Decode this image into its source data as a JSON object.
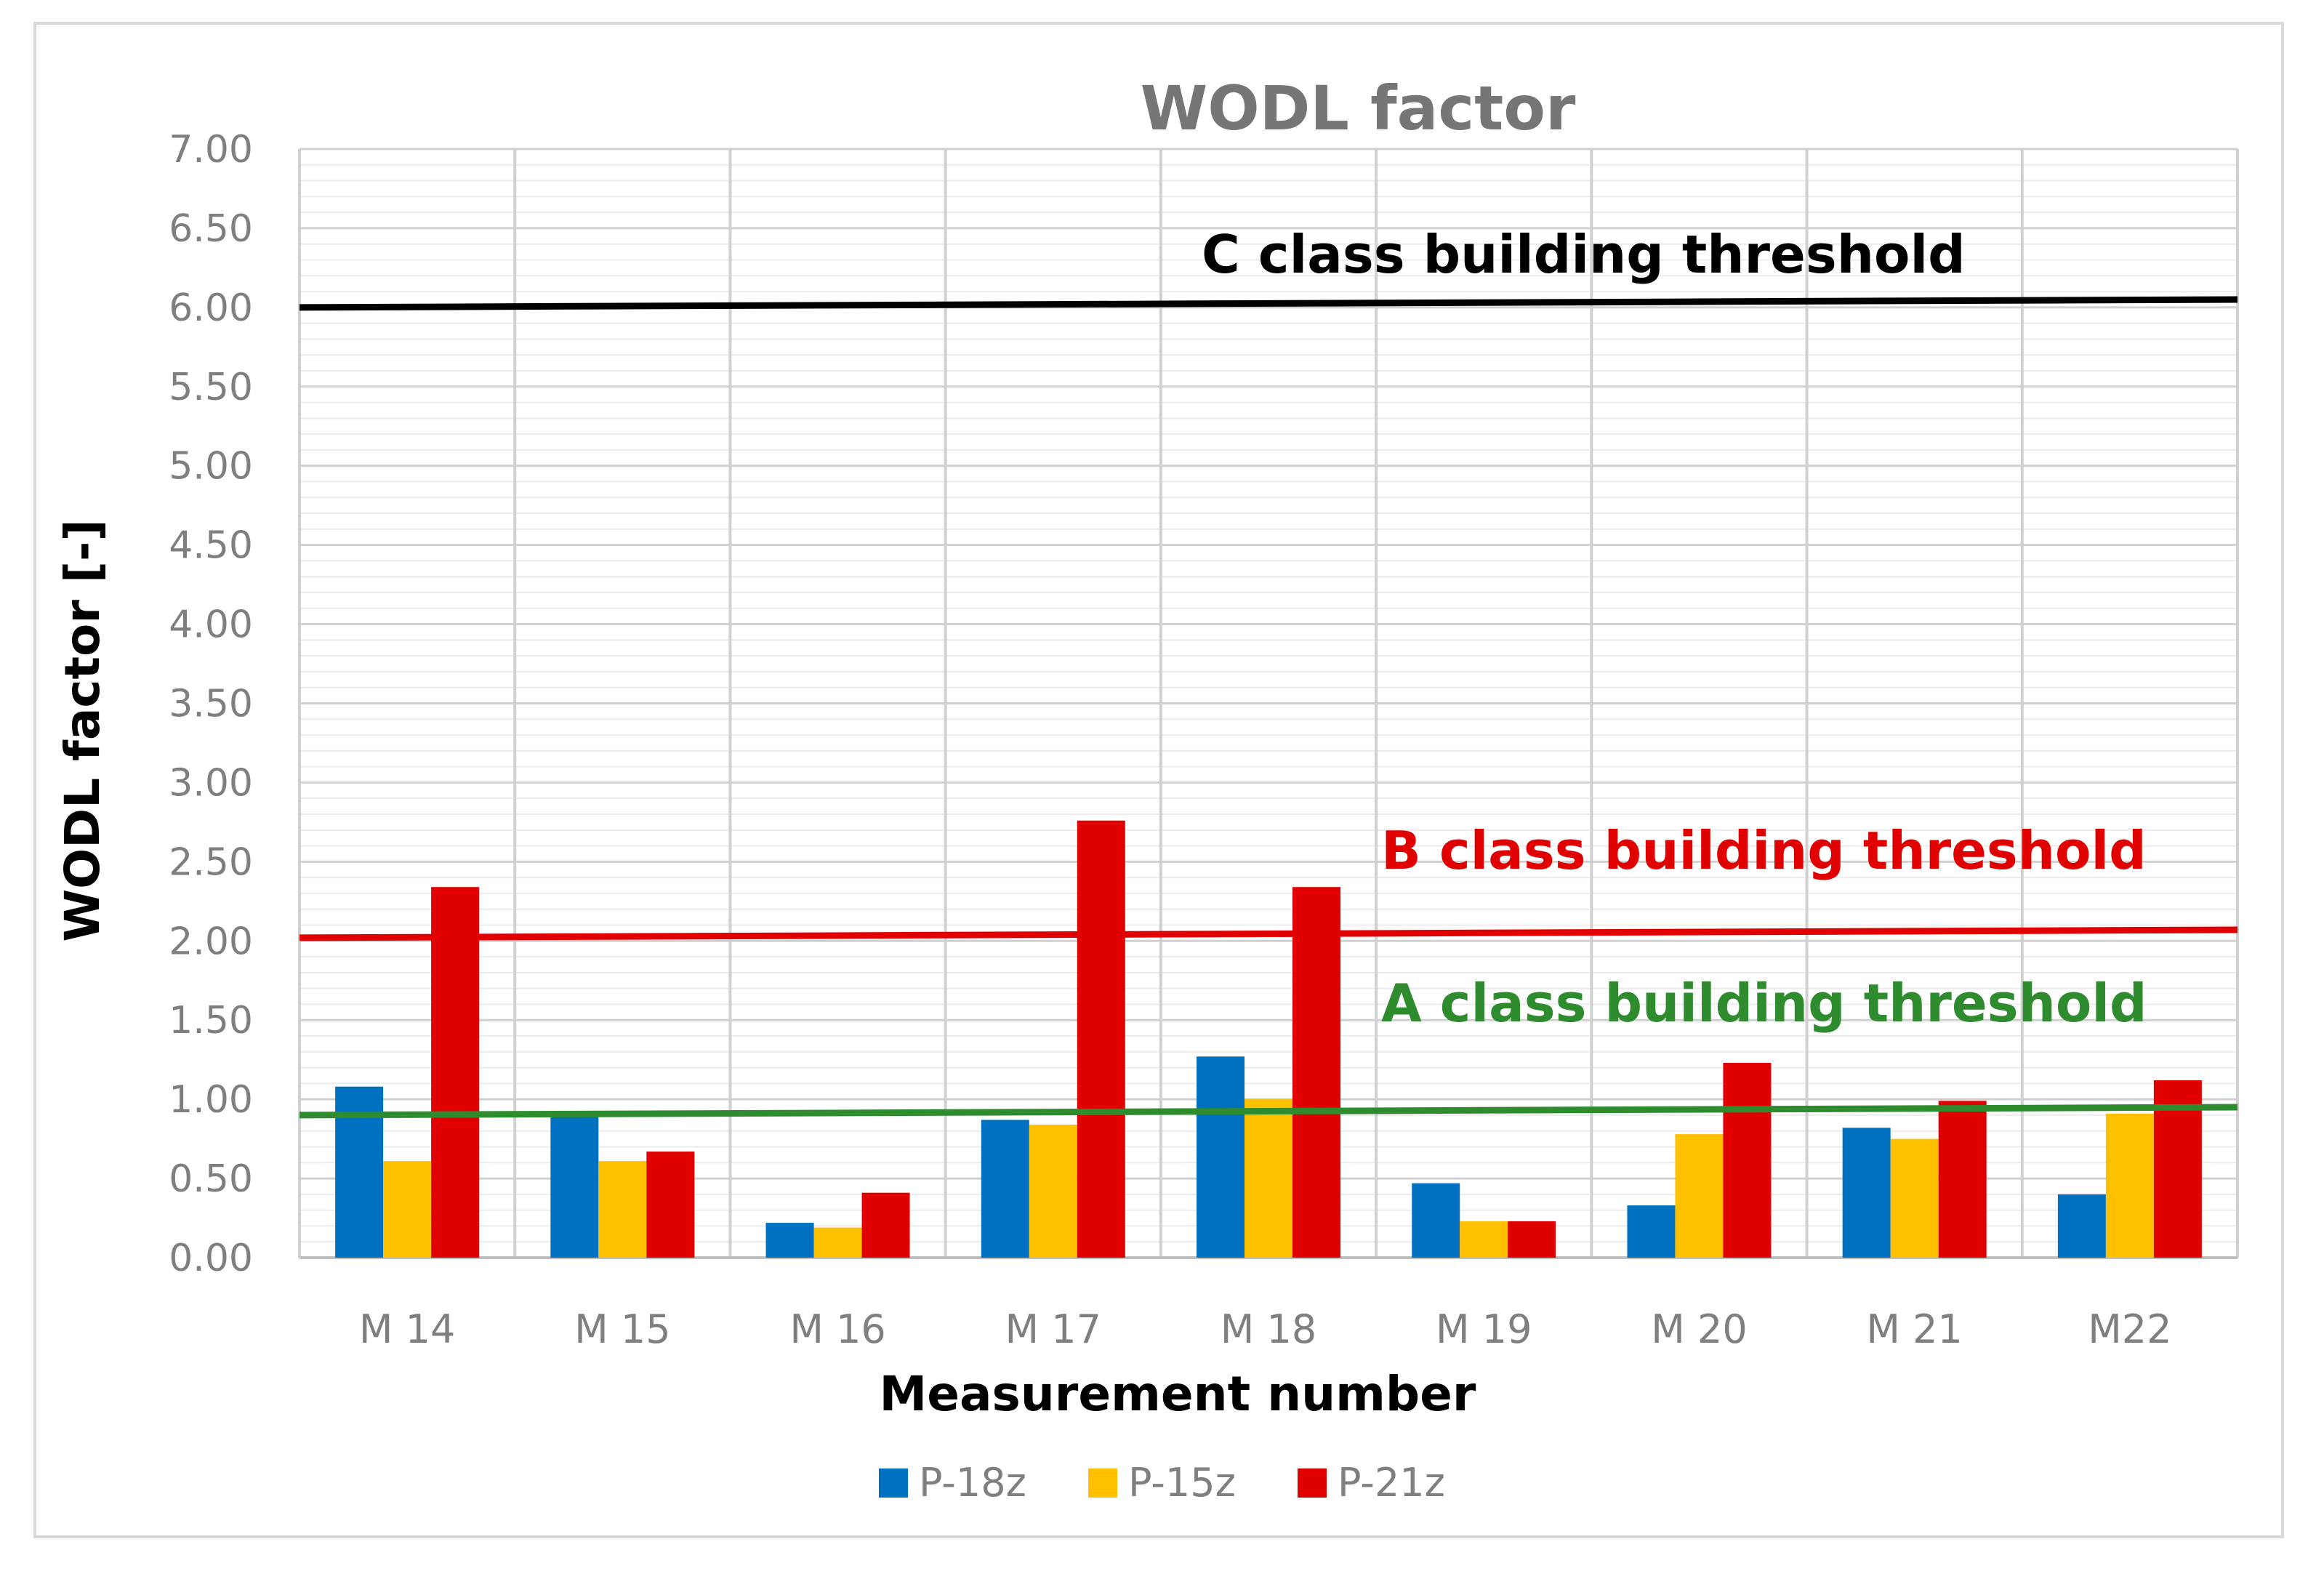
{
  "chart_data": {
    "type": "bar",
    "title": "WODL factor",
    "xlabel": "Measurement number",
    "ylabel": "WODL factor [-]",
    "ylim": [
      0,
      7
    ],
    "ytick_step": 0.5,
    "ytick_labels": [
      "0.00",
      "0.50",
      "1.00",
      "1.50",
      "2.00",
      "2.50",
      "3.00",
      "3.50",
      "4.00",
      "4.50",
      "5.00",
      "5.50",
      "6.00",
      "6.50",
      "7.00"
    ],
    "categories": [
      "M 14",
      "M 15",
      "M 16",
      "M 17",
      "M 18",
      "M 19",
      "M 20",
      "M 21",
      "M22"
    ],
    "series": [
      {
        "name": "P-18z",
        "color": "#0070c0",
        "values": [
          1.08,
          0.91,
          0.22,
          0.87,
          1.27,
          0.47,
          0.33,
          0.82,
          0.4
        ]
      },
      {
        "name": "P-15z",
        "color": "#ffc000",
        "values": [
          0.61,
          0.61,
          0.19,
          0.84,
          1.0,
          0.23,
          0.78,
          0.75,
          0.91
        ]
      },
      {
        "name": "P-21z",
        "color": "#e00000",
        "values": [
          2.34,
          0.67,
          0.41,
          2.76,
          2.34,
          0.23,
          1.23,
          0.99,
          1.12
        ]
      }
    ],
    "thresholds": [
      {
        "label": "C class building threshold",
        "color": "#000000",
        "start": 6.0,
        "end": 6.05
      },
      {
        "label": "B class building threshold",
        "color": "#e00000",
        "start": 2.02,
        "end": 2.07
      },
      {
        "label": "A class building threshold",
        "color": "#2e8b2e",
        "start": 0.9,
        "end": 0.95
      }
    ],
    "grid": true,
    "legend_position": "bottom"
  }
}
